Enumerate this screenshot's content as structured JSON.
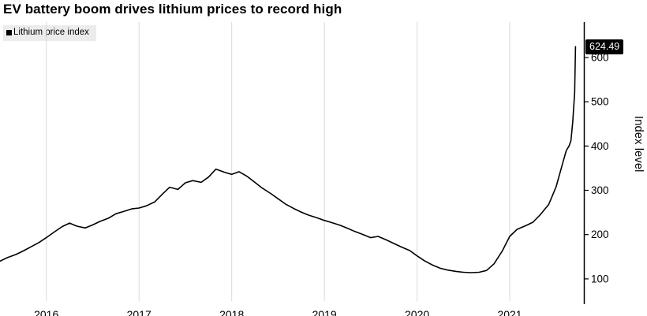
{
  "chart_data": {
    "type": "line",
    "title": "EV battery boom drives lithium prices to record high",
    "legend": "Lithium price index",
    "ylabel": "Index level",
    "xlabel": "",
    "last_value": 624.49,
    "last_value_label": "624.49",
    "xlim": [
      2015.5,
      2021.8
    ],
    "ylim": [
      50,
      680
    ],
    "grid": "vertical-only",
    "legend_position": "top-left",
    "y_axis_side": "right",
    "y_ticks": [
      100,
      200,
      300,
      400,
      500,
      600
    ],
    "x_ticks": [
      {
        "value": 2016,
        "label": "2016"
      },
      {
        "value": 2017,
        "label": "2017"
      },
      {
        "value": 2018,
        "label": "2018"
      },
      {
        "value": 2019,
        "label": "2019"
      },
      {
        "value": 2020,
        "label": "2020"
      },
      {
        "value": 2021,
        "label": "2021"
      }
    ],
    "series": [
      {
        "name": "Lithium price index",
        "x": [
          2015.5,
          2015.58,
          2015.67,
          2015.75,
          2015.83,
          2015.92,
          2016.0,
          2016.08,
          2016.17,
          2016.25,
          2016.33,
          2016.42,
          2016.5,
          2016.58,
          2016.67,
          2016.75,
          2016.83,
          2016.92,
          2017.0,
          2017.08,
          2017.17,
          2017.25,
          2017.33,
          2017.42,
          2017.5,
          2017.58,
          2017.67,
          2017.75,
          2017.83,
          2017.92,
          2018.0,
          2018.08,
          2018.17,
          2018.25,
          2018.33,
          2018.42,
          2018.5,
          2018.58,
          2018.67,
          2018.75,
          2018.83,
          2018.92,
          2019.0,
          2019.08,
          2019.17,
          2019.25,
          2019.33,
          2019.42,
          2019.5,
          2019.58,
          2019.67,
          2019.75,
          2019.83,
          2019.92,
          2020.0,
          2020.08,
          2020.17,
          2020.25,
          2020.33,
          2020.42,
          2020.5,
          2020.58,
          2020.67,
          2020.75,
          2020.83,
          2020.92,
          2021.0,
          2021.08,
          2021.17,
          2021.25,
          2021.33,
          2021.42,
          2021.46,
          2021.5,
          2021.54,
          2021.58,
          2021.61,
          2021.64,
          2021.66,
          2021.68,
          2021.7,
          2021.71
        ],
        "values": [
          140,
          148,
          155,
          163,
          172,
          182,
          193,
          205,
          218,
          226,
          219,
          215,
          222,
          230,
          237,
          247,
          252,
          258,
          260,
          265,
          274,
          291,
          307,
          302,
          317,
          322,
          318,
          330,
          348,
          341,
          336,
          342,
          331,
          318,
          305,
          293,
          281,
          269,
          259,
          251,
          244,
          238,
          232,
          227,
          221,
          214,
          207,
          200,
          193,
          196,
          188,
          180,
          172,
          164,
          152,
          141,
          131,
          124,
          120,
          117,
          115,
          114,
          115,
          119,
          134,
          163,
          196,
          212,
          220,
          228,
          245,
          268,
          288,
          308,
          338,
          368,
          390,
          400,
          412,
          455,
          520,
          624.49
        ]
      }
    ],
    "colors": {
      "line": "#000000",
      "grid": "#d9d9d9",
      "axis": "#000000",
      "text": "#000000",
      "value_label_bg": "#000000",
      "value_label_fg": "#ffffff",
      "legend_bg": "#ececec"
    }
  }
}
